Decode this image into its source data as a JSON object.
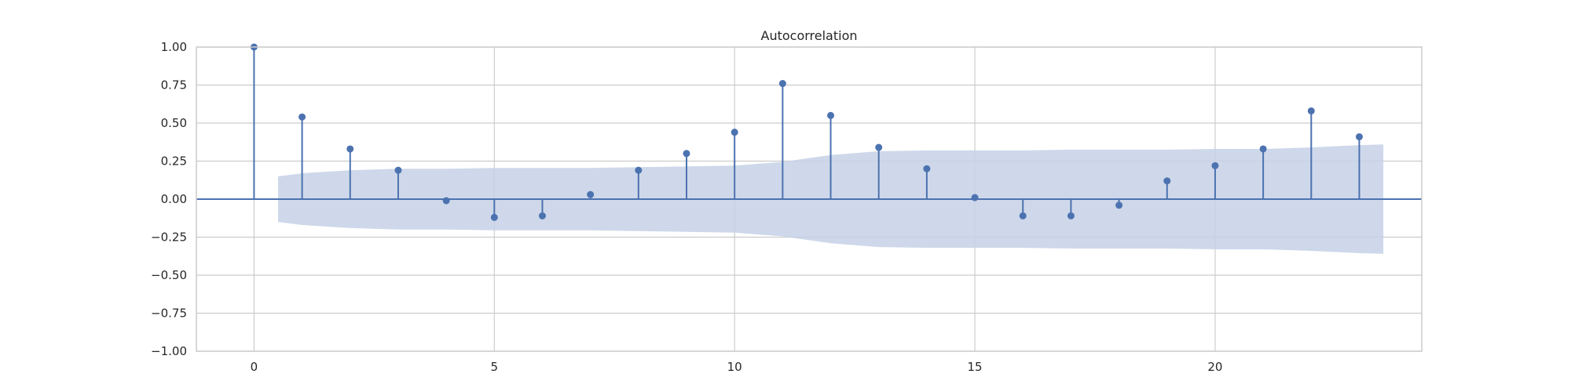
{
  "chart_data": {
    "type": "stem",
    "title": "Autocorrelation",
    "xlabel": "",
    "ylabel": "",
    "lags": [
      0,
      1,
      2,
      3,
      4,
      5,
      6,
      7,
      8,
      9,
      10,
      11,
      12,
      13,
      14,
      15,
      16,
      17,
      18,
      19,
      20,
      21,
      22,
      23
    ],
    "values": [
      1.0,
      0.54,
      0.33,
      0.19,
      -0.01,
      -0.12,
      -0.11,
      0.03,
      0.19,
      0.3,
      0.44,
      0.76,
      0.55,
      0.34,
      0.2,
      0.01,
      -0.11,
      -0.11,
      -0.04,
      0.12,
      0.22,
      0.33,
      0.58,
      0.41
    ],
    "confidence_band": {
      "x": [
        0.5,
        1,
        2,
        3,
        4,
        5,
        6,
        7,
        8,
        9,
        10,
        11,
        12,
        13,
        14,
        15,
        16,
        17,
        18,
        19,
        20,
        21,
        22,
        23,
        23.5
      ],
      "upper": [
        0.15,
        0.17,
        0.19,
        0.2,
        0.2,
        0.205,
        0.205,
        0.205,
        0.21,
        0.215,
        0.22,
        0.245,
        0.29,
        0.315,
        0.32,
        0.32,
        0.32,
        0.325,
        0.325,
        0.325,
        0.33,
        0.33,
        0.34,
        0.355,
        0.36
      ],
      "lower": [
        -0.15,
        -0.17,
        -0.19,
        -0.2,
        -0.2,
        -0.205,
        -0.205,
        -0.205,
        -0.21,
        -0.215,
        -0.22,
        -0.245,
        -0.29,
        -0.315,
        -0.32,
        -0.32,
        -0.32,
        -0.325,
        -0.325,
        -0.325,
        -0.33,
        -0.33,
        -0.34,
        -0.355,
        -0.36
      ]
    },
    "xlim": [
      -1.2,
      24.3
    ],
    "ylim": [
      -1.0,
      1.0
    ],
    "xticks": [
      0,
      5,
      10,
      15,
      20
    ],
    "xtick_labels": [
      "0",
      "5",
      "10",
      "15",
      "20"
    ],
    "yticks": [
      -1.0,
      -0.75,
      -0.5,
      -0.25,
      0.0,
      0.25,
      0.5,
      0.75,
      1.0
    ],
    "ytick_labels": [
      "−1.00",
      "−0.75",
      "−0.50",
      "−0.25",
      "0.00",
      "0.25",
      "0.50",
      "0.75",
      "1.00"
    ],
    "grid": true,
    "colors": {
      "stem": "#4c72b0",
      "band": "#c6d1e6",
      "grid": "#cccccc",
      "spine": "#cccccc",
      "zero_line": "#4c72b0",
      "text": "#262626"
    }
  }
}
